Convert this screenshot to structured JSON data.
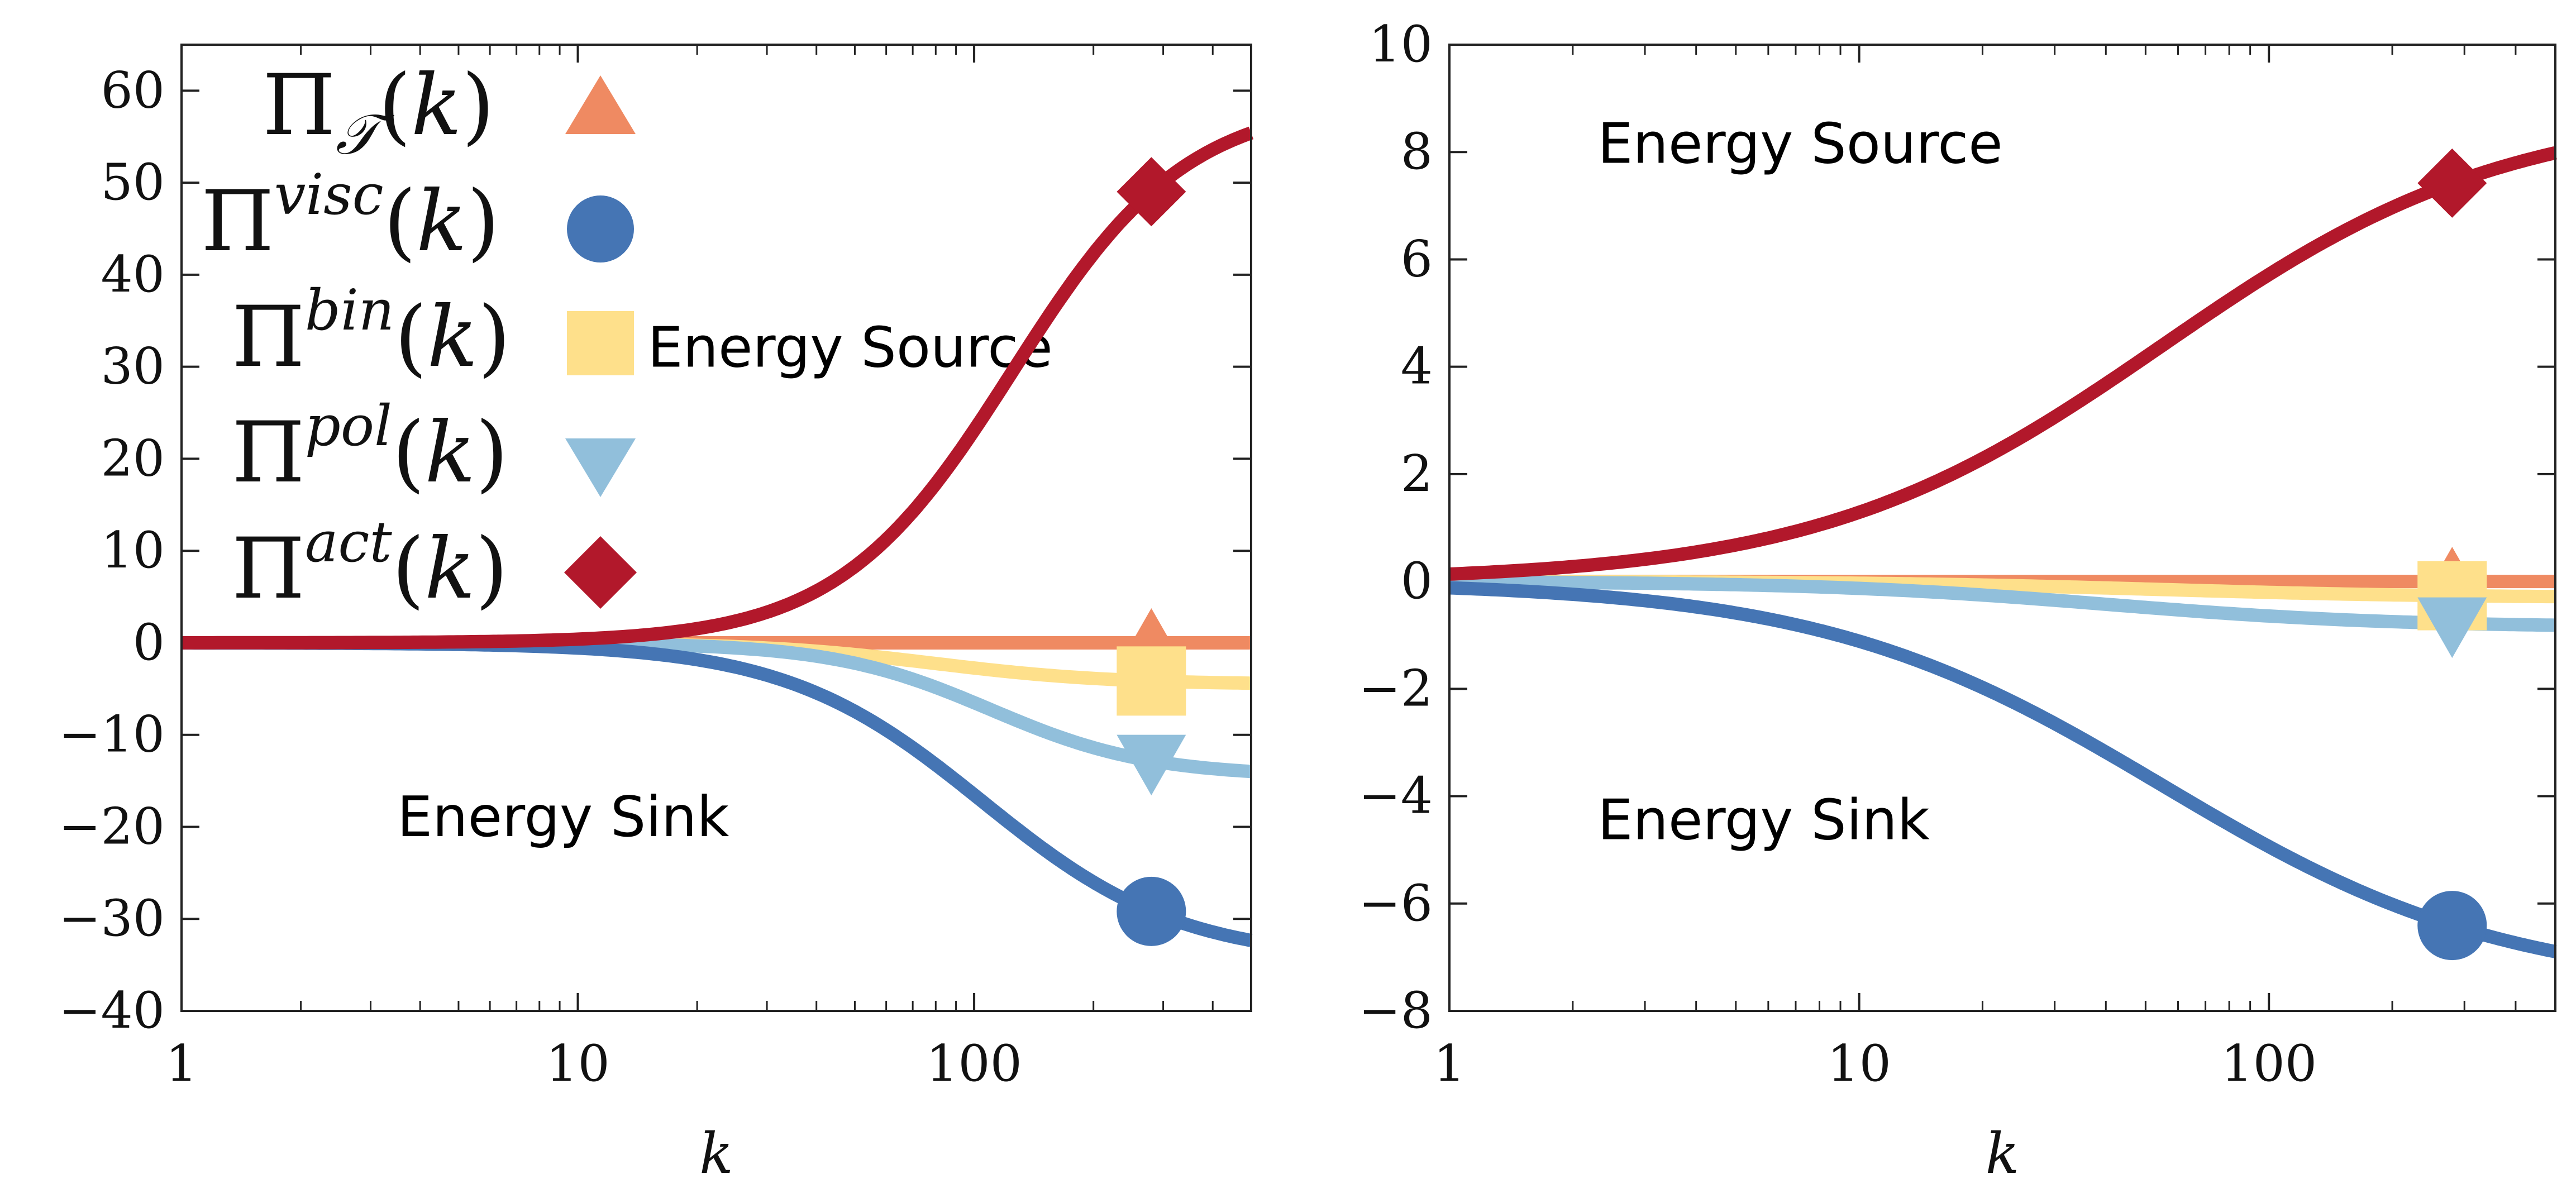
{
  "chart_data": [
    {
      "type": "line",
      "xscale": "log",
      "xlim": [
        1,
        500
      ],
      "ylim": [
        -40,
        65
      ],
      "xlabel": "k",
      "ylabel": "",
      "xticks": [
        1,
        10,
        100
      ],
      "xtick_labels": [
        "1",
        "10",
        "100"
      ],
      "yticks": [
        60,
        50,
        40,
        30,
        20,
        10,
        0,
        -10,
        -20,
        -30,
        -40
      ],
      "ytick_labels": [
        "60",
        "50",
        "40",
        "30",
        "20",
        "10",
        "0",
        "−10",
        "−20",
        "−30",
        "−40"
      ],
      "legend_location": "upper-left",
      "annotations": [
        {
          "text": "Energy Source",
          "x": 15,
          "y": 30
        },
        {
          "text": "Energy Sink",
          "x": 3.5,
          "y": -21
        }
      ],
      "series": [
        {
          "id": "T",
          "color": "#ef8a62",
          "marker": "triangle-up",
          "final": 0.0,
          "mid": 100,
          "width": 0.3,
          "marker_x": 280
        },
        {
          "id": "bin",
          "color": "#fee08b",
          "marker": "square",
          "final": -4.5,
          "mid": 80,
          "width": 0.22,
          "marker_x": 280
        },
        {
          "id": "pol",
          "color": "#91bfdb",
          "marker": "triangle-down",
          "final": -14.5,
          "mid": 110,
          "width": 0.2,
          "marker_x": 280
        },
        {
          "id": "visc",
          "color": "#4575b4",
          "marker": "circle",
          "final": -34.5,
          "mid": 105,
          "width": 0.25,
          "marker_x": 280
        },
        {
          "id": "act",
          "color": "#b2182b",
          "marker": "diamond",
          "final": 59.0,
          "mid": 125,
          "width": 0.22,
          "marker_x": 280
        }
      ]
    },
    {
      "type": "line",
      "xscale": "log",
      "xlim": [
        1,
        500
      ],
      "ylim": [
        -8,
        10
      ],
      "xlabel": "k",
      "ylabel": "",
      "xticks": [
        1,
        10,
        100
      ],
      "xtick_labels": [
        "1",
        "10",
        "100"
      ],
      "yticks": [
        10,
        8,
        6,
        4,
        2,
        0,
        -2,
        -4,
        -6,
        -8
      ],
      "ytick_labels": [
        "10",
        "8",
        "6",
        "4",
        "2",
        "0",
        "−2",
        "−4",
        "−6",
        "−8"
      ],
      "annotations": [
        {
          "text": "Energy Source",
          "x": 2.3,
          "y": 7.8
        },
        {
          "text": "Energy Sink",
          "x": 2.3,
          "y": -4.8
        }
      ],
      "series": [
        {
          "id": "T",
          "color": "#ef8a62",
          "marker": "triangle-up",
          "final": 0.0,
          "mid": 80,
          "width": 0.3,
          "marker_x": 280
        },
        {
          "id": "bin",
          "color": "#fee08b",
          "marker": "square",
          "final": -0.3,
          "mid": 55,
          "width": 0.35,
          "marker_x": 280
        },
        {
          "id": "pol",
          "color": "#91bfdb",
          "marker": "triangle-down",
          "final": -0.85,
          "mid": 40,
          "width": 0.35,
          "marker_x": 280
        },
        {
          "id": "visc",
          "color": "#4575b4",
          "marker": "circle",
          "final": -7.6,
          "mid": 55,
          "width": 0.42,
          "marker_x": 280
        },
        {
          "id": "act",
          "color": "#b2182b",
          "marker": "diamond",
          "final": 8.8,
          "mid": 55,
          "width": 0.42,
          "marker_x": 280
        }
      ]
    }
  ]
}
